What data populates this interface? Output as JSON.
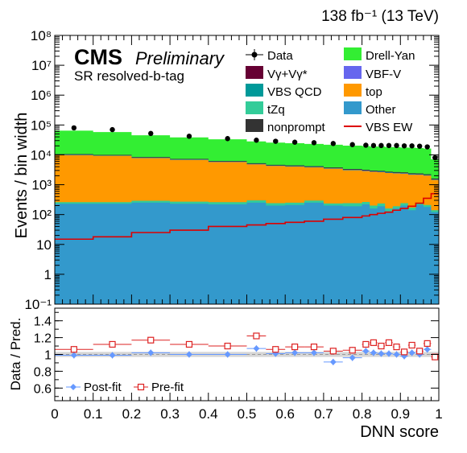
{
  "chart_data": [
    {
      "type": "area",
      "subtype": "stacked-histogram",
      "lumi_label": "138 fb⁻¹ (13 TeV)",
      "experiment": "CMS",
      "status": "Preliminary",
      "region": "SR resolved-b-tag",
      "ylabel": "Events / bin width",
      "yscale": "log",
      "ylim": [
        0.1,
        100000000
      ],
      "yticks": [
        "10⁻¹",
        "1",
        "10",
        "10²",
        "10³",
        "10⁴",
        "10⁵",
        "10⁶",
        "10⁷",
        "10⁸"
      ],
      "xlim": [
        0,
        1
      ],
      "bin_edges": [
        0,
        0.1,
        0.2,
        0.3,
        0.4,
        0.5,
        0.55,
        0.6,
        0.65,
        0.7,
        0.75,
        0.8,
        0.82,
        0.84,
        0.86,
        0.88,
        0.9,
        0.92,
        0.94,
        0.96,
        0.98,
        1.0
      ],
      "legend": {
        "position": "top-right",
        "entries": [
          {
            "label": "Data",
            "style": "marker",
            "color": "#000000"
          },
          {
            "label": "Drell-Yan",
            "style": "fill",
            "color": "#33ee33"
          },
          {
            "label": "Vγ+Vγ*",
            "style": "fill",
            "color": "#660033"
          },
          {
            "label": "VBF-V",
            "style": "fill",
            "color": "#6666ee"
          },
          {
            "label": "VBS QCD",
            "style": "fill",
            "color": "#009999"
          },
          {
            "label": "top",
            "style": "fill",
            "color": "#ff9900"
          },
          {
            "label": "tZq",
            "style": "fill",
            "color": "#33cc99"
          },
          {
            "label": "Other",
            "style": "fill",
            "color": "#3399cc"
          },
          {
            "label": "nonprompt",
            "style": "fill",
            "color": "#333333"
          },
          {
            "label": "VBS EW",
            "style": "line",
            "color": "#dd0000"
          }
        ]
      },
      "stack": [
        {
          "name": "Other",
          "color": "#3399cc",
          "values": [
            230,
            230,
            250,
            230,
            220,
            250,
            200,
            210,
            250,
            200,
            190,
            220,
            160,
            190,
            130,
            160,
            200,
            140,
            210,
            180,
            120
          ]
        },
        {
          "name": "tZq",
          "color": "#33cc99",
          "values": [
            30,
            30,
            40,
            40,
            40,
            50,
            40,
            40,
            45,
            35,
            50,
            45,
            40,
            45,
            30,
            30,
            40,
            30,
            40,
            30,
            20
          ]
        },
        {
          "name": "top",
          "color": "#ff9900",
          "values": [
            9500,
            9000,
            7500,
            6500,
            5500,
            4500,
            4000,
            3800,
            3500,
            3200,
            2800,
            2600,
            2500,
            2400,
            2300,
            2200,
            2100,
            2000,
            1900,
            1800,
            1300
          ]
        },
        {
          "name": "VBF-V",
          "color": "#6666ee",
          "values": [
            150,
            140,
            120,
            100,
            90,
            80,
            75,
            70,
            65,
            60,
            55,
            55,
            50,
            50,
            50,
            45,
            45,
            45,
            45,
            40,
            30
          ]
        },
        {
          "name": "VBS QCD",
          "color": "#009999",
          "values": [
            200,
            190,
            160,
            140,
            120,
            110,
            100,
            95,
            90,
            85,
            80,
            75,
            70,
            70,
            65,
            65,
            60,
            60,
            55,
            55,
            40
          ]
        },
        {
          "name": "nonprompt",
          "color": "#333333",
          "values": [
            300,
            280,
            250,
            220,
            200,
            180,
            170,
            160,
            150,
            140,
            130,
            120,
            115,
            110,
            110,
            105,
            100,
            100,
            95,
            90,
            70
          ]
        },
        {
          "name": "Vγ+Vγ*",
          "color": "#660033",
          "values": [
            80,
            75,
            70,
            65,
            60,
            55,
            52,
            50,
            48,
            45,
            42,
            40,
            40,
            38,
            38,
            36,
            35,
            35,
            34,
            33,
            25
          ]
        },
        {
          "name": "Drell-Yan",
          "color": "#33ee33",
          "values": [
            54000,
            48000,
            37000,
            31000,
            27000,
            23000,
            21000,
            20000,
            19000,
            18000,
            17000,
            16500,
            16000,
            16000,
            15500,
            15500,
            15000,
            15000,
            14500,
            14000,
            5500
          ]
        }
      ],
      "signal_line": {
        "name": "VBS EW",
        "color": "#dd0000",
        "values": [
          15,
          18,
          25,
          30,
          40,
          45,
          50,
          55,
          60,
          70,
          80,
          90,
          100,
          110,
          120,
          140,
          160,
          190,
          240,
          350,
          500
        ]
      },
      "data_points": {
        "name": "Data",
        "color": "#000000",
        "values": [
          80000,
          70000,
          52000,
          42000,
          35000,
          31000,
          28500,
          26500,
          25500,
          24000,
          22000,
          21000,
          20500,
          20500,
          20500,
          20500,
          20000,
          20000,
          19500,
          18500,
          8000
        ]
      }
    },
    {
      "type": "scatter",
      "subtype": "ratio",
      "ylabel": "Data / Pred.",
      "xlabel": "DNN score",
      "xlim": [
        0,
        1
      ],
      "ylim": [
        0.45,
        1.55
      ],
      "yticks": [
        "0.6",
        "0.8",
        "1",
        "1.2",
        "1.4"
      ],
      "xticks": [
        "0",
        "0.1",
        "0.2",
        "0.3",
        "0.4",
        "0.5",
        "0.6",
        "0.7",
        "0.8",
        "0.9",
        "1"
      ],
      "band_color": "#bbbbbb",
      "legend": {
        "position": "bottom-left",
        "entries": [
          {
            "label": "Post-fit",
            "style": "marker",
            "color": "#6699ff"
          },
          {
            "label": "Pre-fit",
            "style": "open-marker",
            "color": "#dd2222"
          }
        ]
      },
      "series": [
        {
          "name": "Post-fit",
          "color": "#6699ff",
          "values": [
            0.99,
            0.99,
            1.02,
            1.0,
            1.0,
            1.07,
            1.01,
            1.02,
            1.02,
            0.91,
            0.96,
            1.04,
            1.02,
            1.01,
            1.01,
            1.0,
            0.98,
            1.02,
            1.0,
            1.06,
            0.97
          ]
        },
        {
          "name": "Pre-fit",
          "color": "#dd2222",
          "values": [
            1.06,
            1.12,
            1.17,
            1.12,
            1.1,
            1.22,
            1.06,
            1.09,
            1.09,
            1.04,
            1.05,
            1.12,
            1.14,
            1.1,
            1.14,
            1.09,
            1.03,
            1.11,
            1.04,
            1.13,
            0.97
          ]
        }
      ]
    }
  ]
}
